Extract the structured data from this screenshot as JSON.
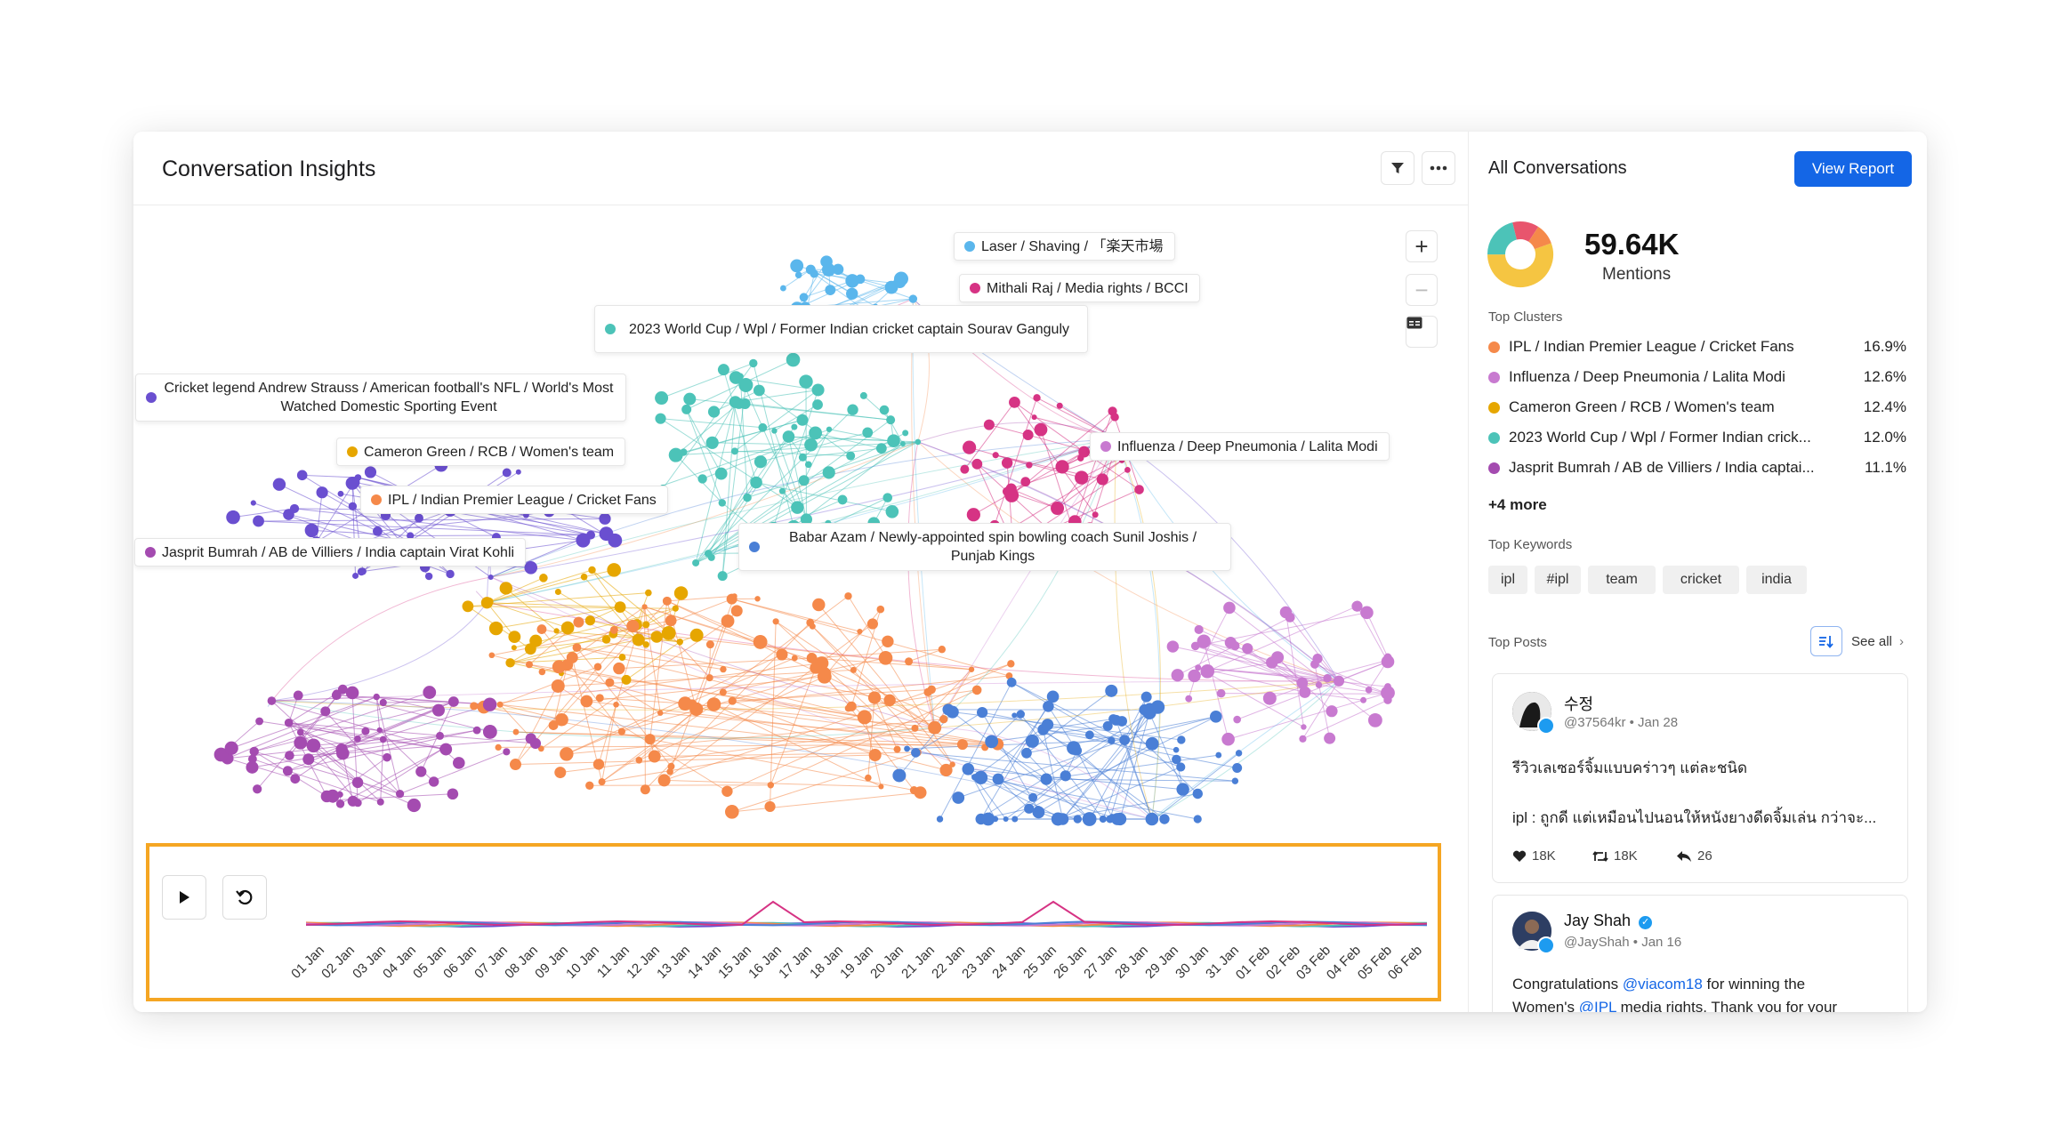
{
  "header": {
    "title": "Conversation Insights",
    "filter_icon": "filter-icon",
    "more_icon": "more-horizontal-icon"
  },
  "graph": {
    "labels": [
      {
        "text": "Laser / Shaving / 「楽天市場",
        "color": "#5ab6ec"
      },
      {
        "text": "Mithali Raj / Media rights / BCCI",
        "color": "#d63384"
      },
      {
        "text": "2023 World Cup / Wpl / Former Indian cricket captain Sourav Ganguly",
        "color": "#4cc3b8"
      },
      {
        "text": "Cricket legend Andrew Strauss / American football's NFL / World's Most Watched Domestic Sporting Event",
        "color": "#6a4fd0"
      },
      {
        "text": "Cameron Green / RCB / Women's team",
        "color": "#e6a600"
      },
      {
        "text": "Influenza / Deep Pneumonia / Lalita Modi",
        "color": "#c87ad0"
      },
      {
        "text": "IPL / Indian Premier League / Cricket Fans",
        "color": "#f5894a"
      },
      {
        "text": "Babar Azam / Newly-appointed spin bowling coach Sunil Joshis / Punjab Kings",
        "color": "#4a7fd6"
      },
      {
        "text": "Jasprit Bumrah / AB de Villiers / India captain Virat Kohli",
        "color": "#a44bb0"
      }
    ],
    "zoom_in": "+",
    "zoom_out": "−"
  },
  "timeline": {
    "play_icon": "play-icon",
    "reset_icon": "reset-icon",
    "dates": [
      "01 Jan",
      "02 Jan",
      "03 Jan",
      "04 Jan",
      "05 Jan",
      "06 Jan",
      "07 Jan",
      "08 Jan",
      "09 Jan",
      "10 Jan",
      "11 Jan",
      "12 Jan",
      "13 Jan",
      "14 Jan",
      "15 Jan",
      "16 Jan",
      "17 Jan",
      "18 Jan",
      "19 Jan",
      "20 Jan",
      "21 Jan",
      "22 Jan",
      "23 Jan",
      "24 Jan",
      "25 Jan",
      "26 Jan",
      "27 Jan",
      "28 Jan",
      "29 Jan",
      "30 Jan",
      "31 Jan",
      "01 Feb",
      "02 Feb",
      "03 Feb",
      "04 Feb",
      "05 Feb",
      "06 Feb"
    ]
  },
  "sidebar": {
    "title": "All Conversations",
    "view_report": "View Report",
    "mentions_value": "59.64K",
    "mentions_label": "Mentions",
    "donut_colors": [
      "#f5c542",
      "#4cc3b8",
      "#e8556d",
      "#f5894a"
    ],
    "top_clusters_label": "Top Clusters",
    "clusters": [
      {
        "name": "IPL / Indian Premier League / Cricket Fans",
        "pct": "16.9%",
        "color": "#f5894a"
      },
      {
        "name": "Influenza / Deep Pneumonia / Lalita Modi",
        "pct": "12.6%",
        "color": "#c87ad0"
      },
      {
        "name": "Cameron Green / RCB / Women's team",
        "pct": "12.4%",
        "color": "#e6a600"
      },
      {
        "name": "2023 World Cup / Wpl / Former Indian crick...",
        "pct": "12.0%",
        "color": "#4cc3b8"
      },
      {
        "name": "Jasprit Bumrah / AB de Villiers / India captai...",
        "pct": "11.1%",
        "color": "#a44bb0"
      }
    ],
    "more": "+4 more",
    "top_keywords_label": "Top Keywords",
    "keywords": [
      "ipl",
      "#ipl",
      "team",
      "cricket",
      "india"
    ],
    "top_posts_label": "Top Posts",
    "sort_icon": "sort-icon",
    "see_all": "See all",
    "posts": [
      {
        "name": "수정",
        "handle": "@37564kr",
        "date": "Jan 28",
        "line1": "รีวิวเลเซอร์จิ้มแบบคร่าวๆ แต่ละชนิด",
        "line2": "ipl : ถูกดี แต่เหมือนไปนอนให้หนังยางดีดจิ้มเล่น กว่าจะ...",
        "likes": "18K",
        "retweets": "18K",
        "replies": "26"
      },
      {
        "name": "Jay Shah",
        "handle": "@JayShah",
        "date": "Jan 16",
        "line1_a": "Congratulations ",
        "line1_mention": "@viacom18",
        "line1_b": " for winning the",
        "line2_a": "Women's ",
        "line2_mention": "@IPL",
        "line2_b": " media rights. Thank you for your"
      }
    ]
  }
}
